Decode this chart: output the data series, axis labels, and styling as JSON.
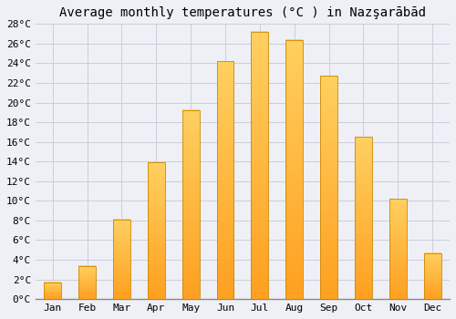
{
  "title": "Average monthly temperatures (°C ) in Nazşarābād",
  "months": [
    "Jan",
    "Feb",
    "Mar",
    "Apr",
    "May",
    "Jun",
    "Jul",
    "Aug",
    "Sep",
    "Oct",
    "Nov",
    "Dec"
  ],
  "values": [
    1.7,
    3.4,
    8.1,
    13.9,
    19.2,
    24.2,
    27.2,
    26.4,
    22.7,
    16.5,
    10.2,
    4.7
  ],
  "bar_color_top": "#FFD060",
  "bar_color_bottom": "#FFA020",
  "bar_edge_color": "#CC8800",
  "ylim": [
    0,
    28
  ],
  "yticks": [
    0,
    2,
    4,
    6,
    8,
    10,
    12,
    14,
    16,
    18,
    20,
    22,
    24,
    26,
    28
  ],
  "ytick_labels": [
    "0°C",
    "2°C",
    "4°C",
    "6°C",
    "8°C",
    "10°C",
    "12°C",
    "14°C",
    "16°C",
    "18°C",
    "20°C",
    "22°C",
    "24°C",
    "26°C",
    "28°C"
  ],
  "background_color": "#eef0f5",
  "plot_bg_color": "#eef0f5",
  "grid_color": "#ccccdd",
  "title_fontsize": 10,
  "tick_fontsize": 8,
  "bar_width": 0.5
}
